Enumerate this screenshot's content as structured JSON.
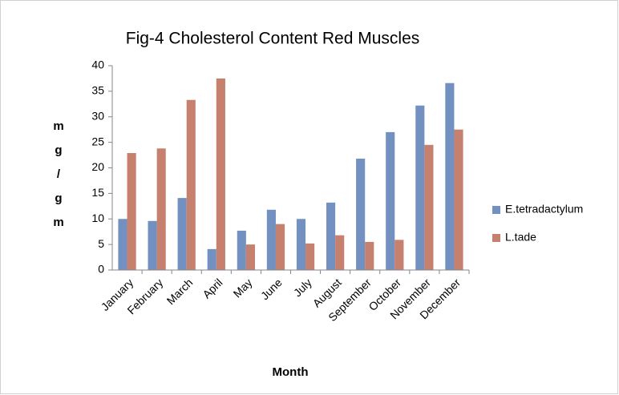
{
  "chart_data": {
    "type": "bar",
    "title": "Fig-4 Cholesterol Content Red Muscles",
    "x_label": "Month",
    "y_label": "mg/gm",
    "categories": [
      "January",
      "February",
      "March",
      "April",
      "May",
      "June",
      "July",
      "August",
      "September",
      "October",
      "November",
      "December"
    ],
    "series": [
      {
        "name": "E.tetradactylum",
        "color": "#7391c0",
        "values": [
          10,
          9.6,
          14.1,
          4.1,
          7.7,
          11.8,
          10,
          13.2,
          21.8,
          27,
          32.2,
          36.6
        ]
      },
      {
        "name": "L.tade",
        "color": "#c5806e",
        "values": [
          22.9,
          23.8,
          33.3,
          37.5,
          5,
          9,
          5.2,
          6.8,
          5.5,
          5.9,
          24.5,
          27.5
        ]
      }
    ],
    "ylim": [
      0,
      40
    ],
    "yticks": [
      0,
      5,
      10,
      15,
      20,
      25,
      30,
      35,
      40
    ],
    "grid": false,
    "legend": "right"
  }
}
